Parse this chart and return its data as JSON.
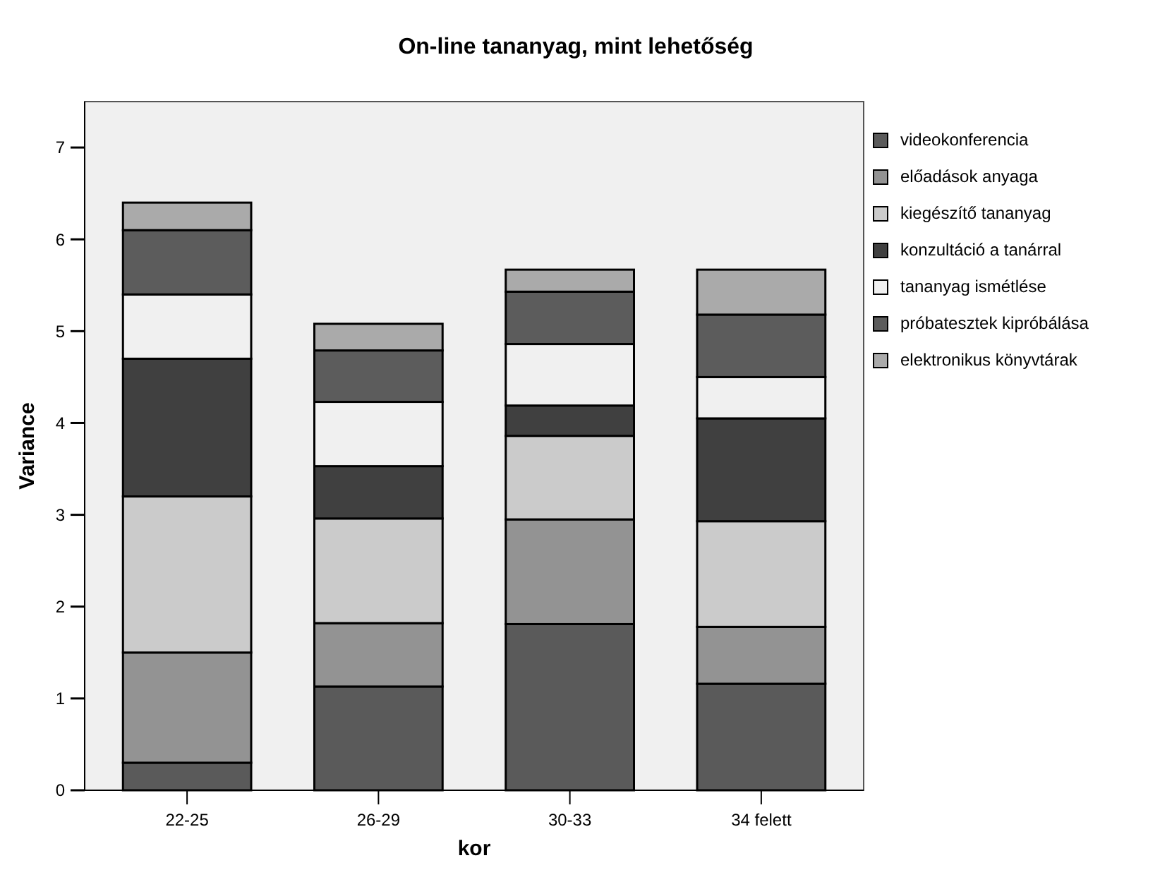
{
  "chart_data": {
    "type": "bar",
    "title": "On-line tananyag, mint lehetőség",
    "xlabel": "kor",
    "ylabel": "Variance",
    "categories": [
      "22-25",
      "26-29",
      "30-33",
      "34 felett"
    ],
    "stacked": true,
    "legend": "right",
    "grid": false,
    "ylim": [
      0,
      7.5
    ],
    "yticks": [
      0,
      1,
      2,
      3,
      4,
      5,
      6,
      7
    ],
    "series": [
      {
        "name": "videokonferencia",
        "color": "#5a5a5a",
        "values": [
          0.3,
          1.13,
          1.81,
          1.16
        ]
      },
      {
        "name": "előadások anyaga",
        "color": "#939393",
        "values": [
          1.2,
          0.69,
          1.14,
          0.62
        ]
      },
      {
        "name": "kiegészítő tananyag",
        "color": "#cbcbcb",
        "values": [
          1.7,
          1.14,
          0.91,
          1.15
        ]
      },
      {
        "name": "konzultáció a tanárral",
        "color": "#404040",
        "values": [
          1.5,
          0.57,
          0.33,
          1.12
        ]
      },
      {
        "name": "tananyag ismétlése",
        "color": "#f0f0f0",
        "values": [
          0.7,
          0.7,
          0.67,
          0.45
        ]
      },
      {
        "name": "próbatesztek kipróbálása",
        "color": "#5c5c5c",
        "values": [
          0.7,
          0.56,
          0.57,
          0.68
        ]
      },
      {
        "name": "elektronikus könyvtárak",
        "color": "#aaaaaa",
        "values": [
          0.3,
          0.29,
          0.24,
          0.49
        ]
      }
    ]
  }
}
